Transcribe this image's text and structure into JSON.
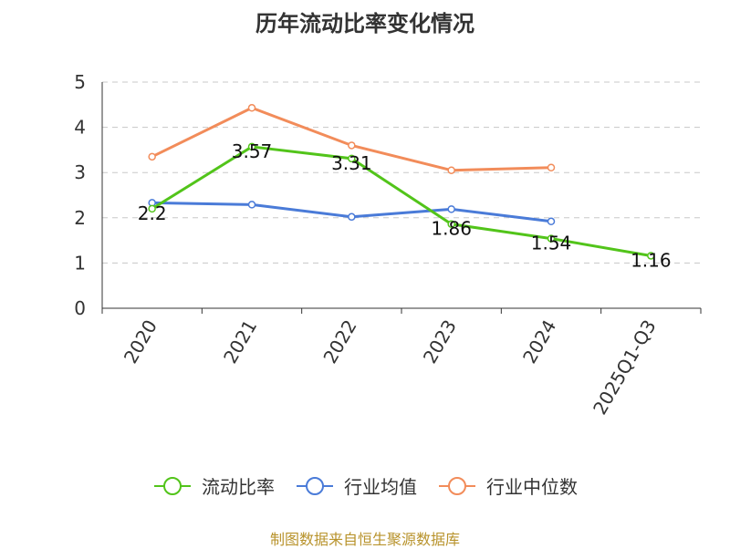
{
  "chart_data": {
    "type": "line",
    "title": "历年流动比率变化情况",
    "categories": [
      "2020",
      "2021",
      "2022",
      "2023",
      "2024",
      "2025Q1-Q3"
    ],
    "ylim": [
      0,
      5
    ],
    "yticks": [
      0,
      1,
      2,
      3,
      4,
      5
    ],
    "grid": true,
    "legend_position": "bottom",
    "series": [
      {
        "name": "流动比率",
        "color": "#52c41a",
        "values": [
          2.2,
          3.57,
          3.31,
          1.86,
          1.54,
          1.16
        ],
        "labels": [
          "2.2",
          "3.57",
          "3.31",
          "1.86",
          "1.54",
          "1.16"
        ]
      },
      {
        "name": "行业均值",
        "color": "#4a7bd8",
        "values": [
          2.33,
          2.29,
          2.02,
          2.19,
          1.92,
          null
        ]
      },
      {
        "name": "行业中位数",
        "color": "#f28c5a",
        "values": [
          3.35,
          4.43,
          3.6,
          3.05,
          3.11,
          null
        ]
      }
    ]
  },
  "source": "制图数据来自恒生聚源数据库"
}
